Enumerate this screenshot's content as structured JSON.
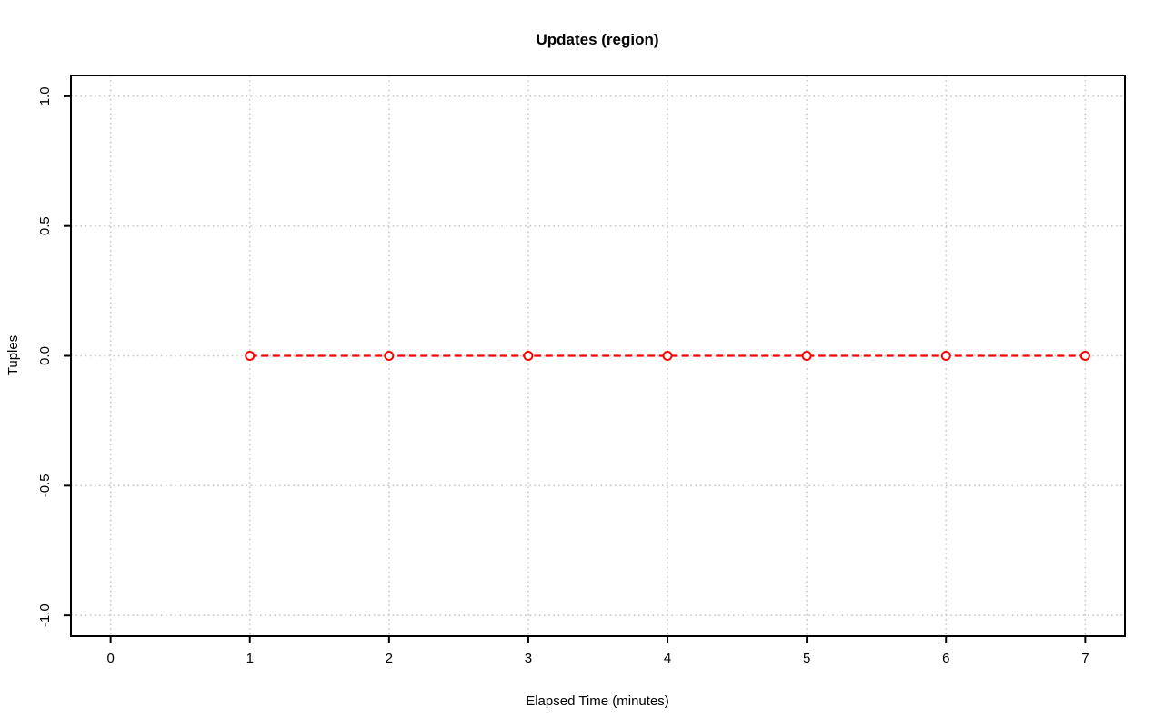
{
  "chart_data": {
    "type": "line",
    "title": "Updates (region)",
    "xlabel": "Elapsed Time (minutes)",
    "ylabel": "Tuples",
    "x_ticks": [
      0,
      1,
      2,
      3,
      4,
      5,
      6,
      7
    ],
    "x_tick_labels": [
      "0",
      "1",
      "2",
      "3",
      "4",
      "5",
      "6",
      "7"
    ],
    "y_ticks": [
      1.0,
      0.5,
      0.0,
      -0.5,
      -1.0
    ],
    "y_tick_labels": [
      "1.0",
      "0.5",
      "0.0",
      "-0.5",
      "-1.0"
    ],
    "xlim": [
      -0.285,
      7.285
    ],
    "ylim": [
      -1.08,
      1.08
    ],
    "grid": true,
    "grid_color": "#c9c9c9",
    "axis_color": "#000000",
    "background": "#ffffff",
    "legend": "none",
    "series": [
      {
        "name": "updates",
        "x": [
          1,
          2,
          3,
          4,
          5,
          6,
          7
        ],
        "y": [
          0,
          0,
          0,
          0,
          0,
          0,
          0
        ],
        "color": "#ff0000",
        "line_style": "dashed",
        "line_width": 2.2,
        "marker": "open-circle",
        "marker_radius": 4.5
      }
    ]
  }
}
